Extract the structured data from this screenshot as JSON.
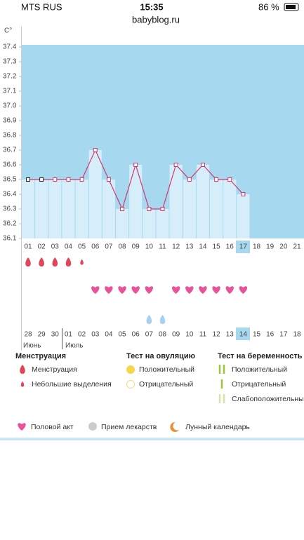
{
  "status_bar": {
    "carrier": "MTS RUS",
    "time": "15:35",
    "battery": "86 %"
  },
  "address": "babyblog.ru",
  "chart_data": {
    "type": "line",
    "y_unit": "C°",
    "categories": [
      "01",
      "02",
      "03",
      "04",
      "05",
      "06",
      "07",
      "08",
      "09",
      "10",
      "11",
      "12",
      "13",
      "14",
      "15",
      "16",
      "17",
      "18",
      "19",
      "20",
      "21"
    ],
    "values": [
      36.5,
      36.5,
      36.5,
      36.5,
      36.5,
      36.7,
      36.5,
      36.3,
      36.6,
      36.3,
      36.3,
      36.6,
      36.5,
      36.6,
      36.5,
      36.5,
      36.4,
      null,
      null,
      null,
      null
    ],
    "color": "#d2386b",
    "ylim": [
      36.1,
      37.4
    ],
    "yticks": [
      36.1,
      36.2,
      36.3,
      36.4,
      36.5,
      36.6,
      36.7,
      36.8,
      36.9,
      {
        "value": 37,
        "label": "37.0"
      },
      37.1,
      37.2,
      37.3,
      37.4
    ]
  },
  "dates": [
    "28",
    "29",
    "30",
    "01",
    "02",
    "03",
    "04",
    "05",
    "06",
    "07",
    "08",
    "09",
    "10",
    "11",
    "12",
    "13",
    "14",
    "15",
    "16",
    "17",
    "18"
  ],
  "date_colors": [
    "#d2386b",
    "#555",
    "#555",
    "#555",
    "#555",
    "#555",
    "#d2386b",
    "#d2386b",
    "#555",
    "#555",
    "#555",
    "#555",
    "#555",
    "#d2386b",
    "#d2386b",
    "#555",
    "#555",
    "#555",
    "#555",
    "#555",
    "#d2386b"
  ],
  "months": [
    "Июнь",
    "Июль"
  ],
  "legend": {
    "menstruation": {
      "title": "Менструация",
      "items": [
        "Менструация",
        "Небольшие выделения"
      ]
    },
    "ovulation_test": {
      "title": "Тест на овуляцию",
      "items": [
        "Положительный",
        "Отрицательный"
      ]
    },
    "pregnancy_test": {
      "title": "Тест на беременность",
      "items": [
        "Положительный",
        "Отрицательный",
        "Слабоположительный"
      ]
    },
    "other": [
      "Половой акт",
      "Прием лекарств",
      "Лунный календарь"
    ]
  }
}
